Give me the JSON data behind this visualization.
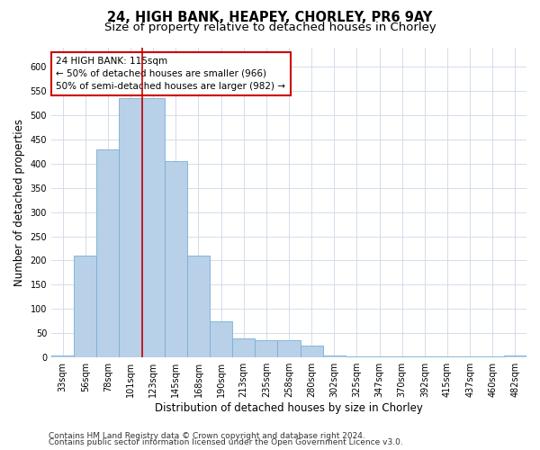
{
  "title1": "24, HIGH BANK, HEAPEY, CHORLEY, PR6 9AY",
  "title2": "Size of property relative to detached houses in Chorley",
  "xlabel": "Distribution of detached houses by size in Chorley",
  "ylabel": "Number of detached properties",
  "footer1": "Contains HM Land Registry data © Crown copyright and database right 2024.",
  "footer2": "Contains public sector information licensed under the Open Government Licence v3.0.",
  "categories": [
    "33sqm",
    "56sqm",
    "78sqm",
    "101sqm",
    "123sqm",
    "145sqm",
    "168sqm",
    "190sqm",
    "213sqm",
    "235sqm",
    "258sqm",
    "280sqm",
    "302sqm",
    "325sqm",
    "347sqm",
    "370sqm",
    "392sqm",
    "415sqm",
    "437sqm",
    "460sqm",
    "482sqm"
  ],
  "values": [
    5,
    210,
    430,
    535,
    535,
    405,
    210,
    75,
    40,
    35,
    35,
    25,
    5,
    2,
    2,
    2,
    2,
    2,
    2,
    2,
    5
  ],
  "bar_color": "#b8d0e8",
  "bar_edge_color": "#7aafd4",
  "red_line_x": 3.5,
  "red_line_color": "#cc0000",
  "annotation_line1": "24 HIGH BANK: 115sqm",
  "annotation_line2": "← 50% of detached houses are smaller (966)",
  "annotation_line3": "50% of semi-detached houses are larger (982) →",
  "annotation_box_color": "#ffffff",
  "annotation_box_edge": "#cc0000",
  "ylim": [
    0,
    640
  ],
  "yticks": [
    0,
    50,
    100,
    150,
    200,
    250,
    300,
    350,
    400,
    450,
    500,
    550,
    600
  ],
  "bg_color": "#ffffff",
  "grid_color": "#cdd8e8",
  "title1_fontsize": 10.5,
  "title2_fontsize": 9.5,
  "xlabel_fontsize": 8.5,
  "ylabel_fontsize": 8.5,
  "tick_fontsize": 7,
  "annot_fontsize": 7.5,
  "footer_fontsize": 6.5
}
